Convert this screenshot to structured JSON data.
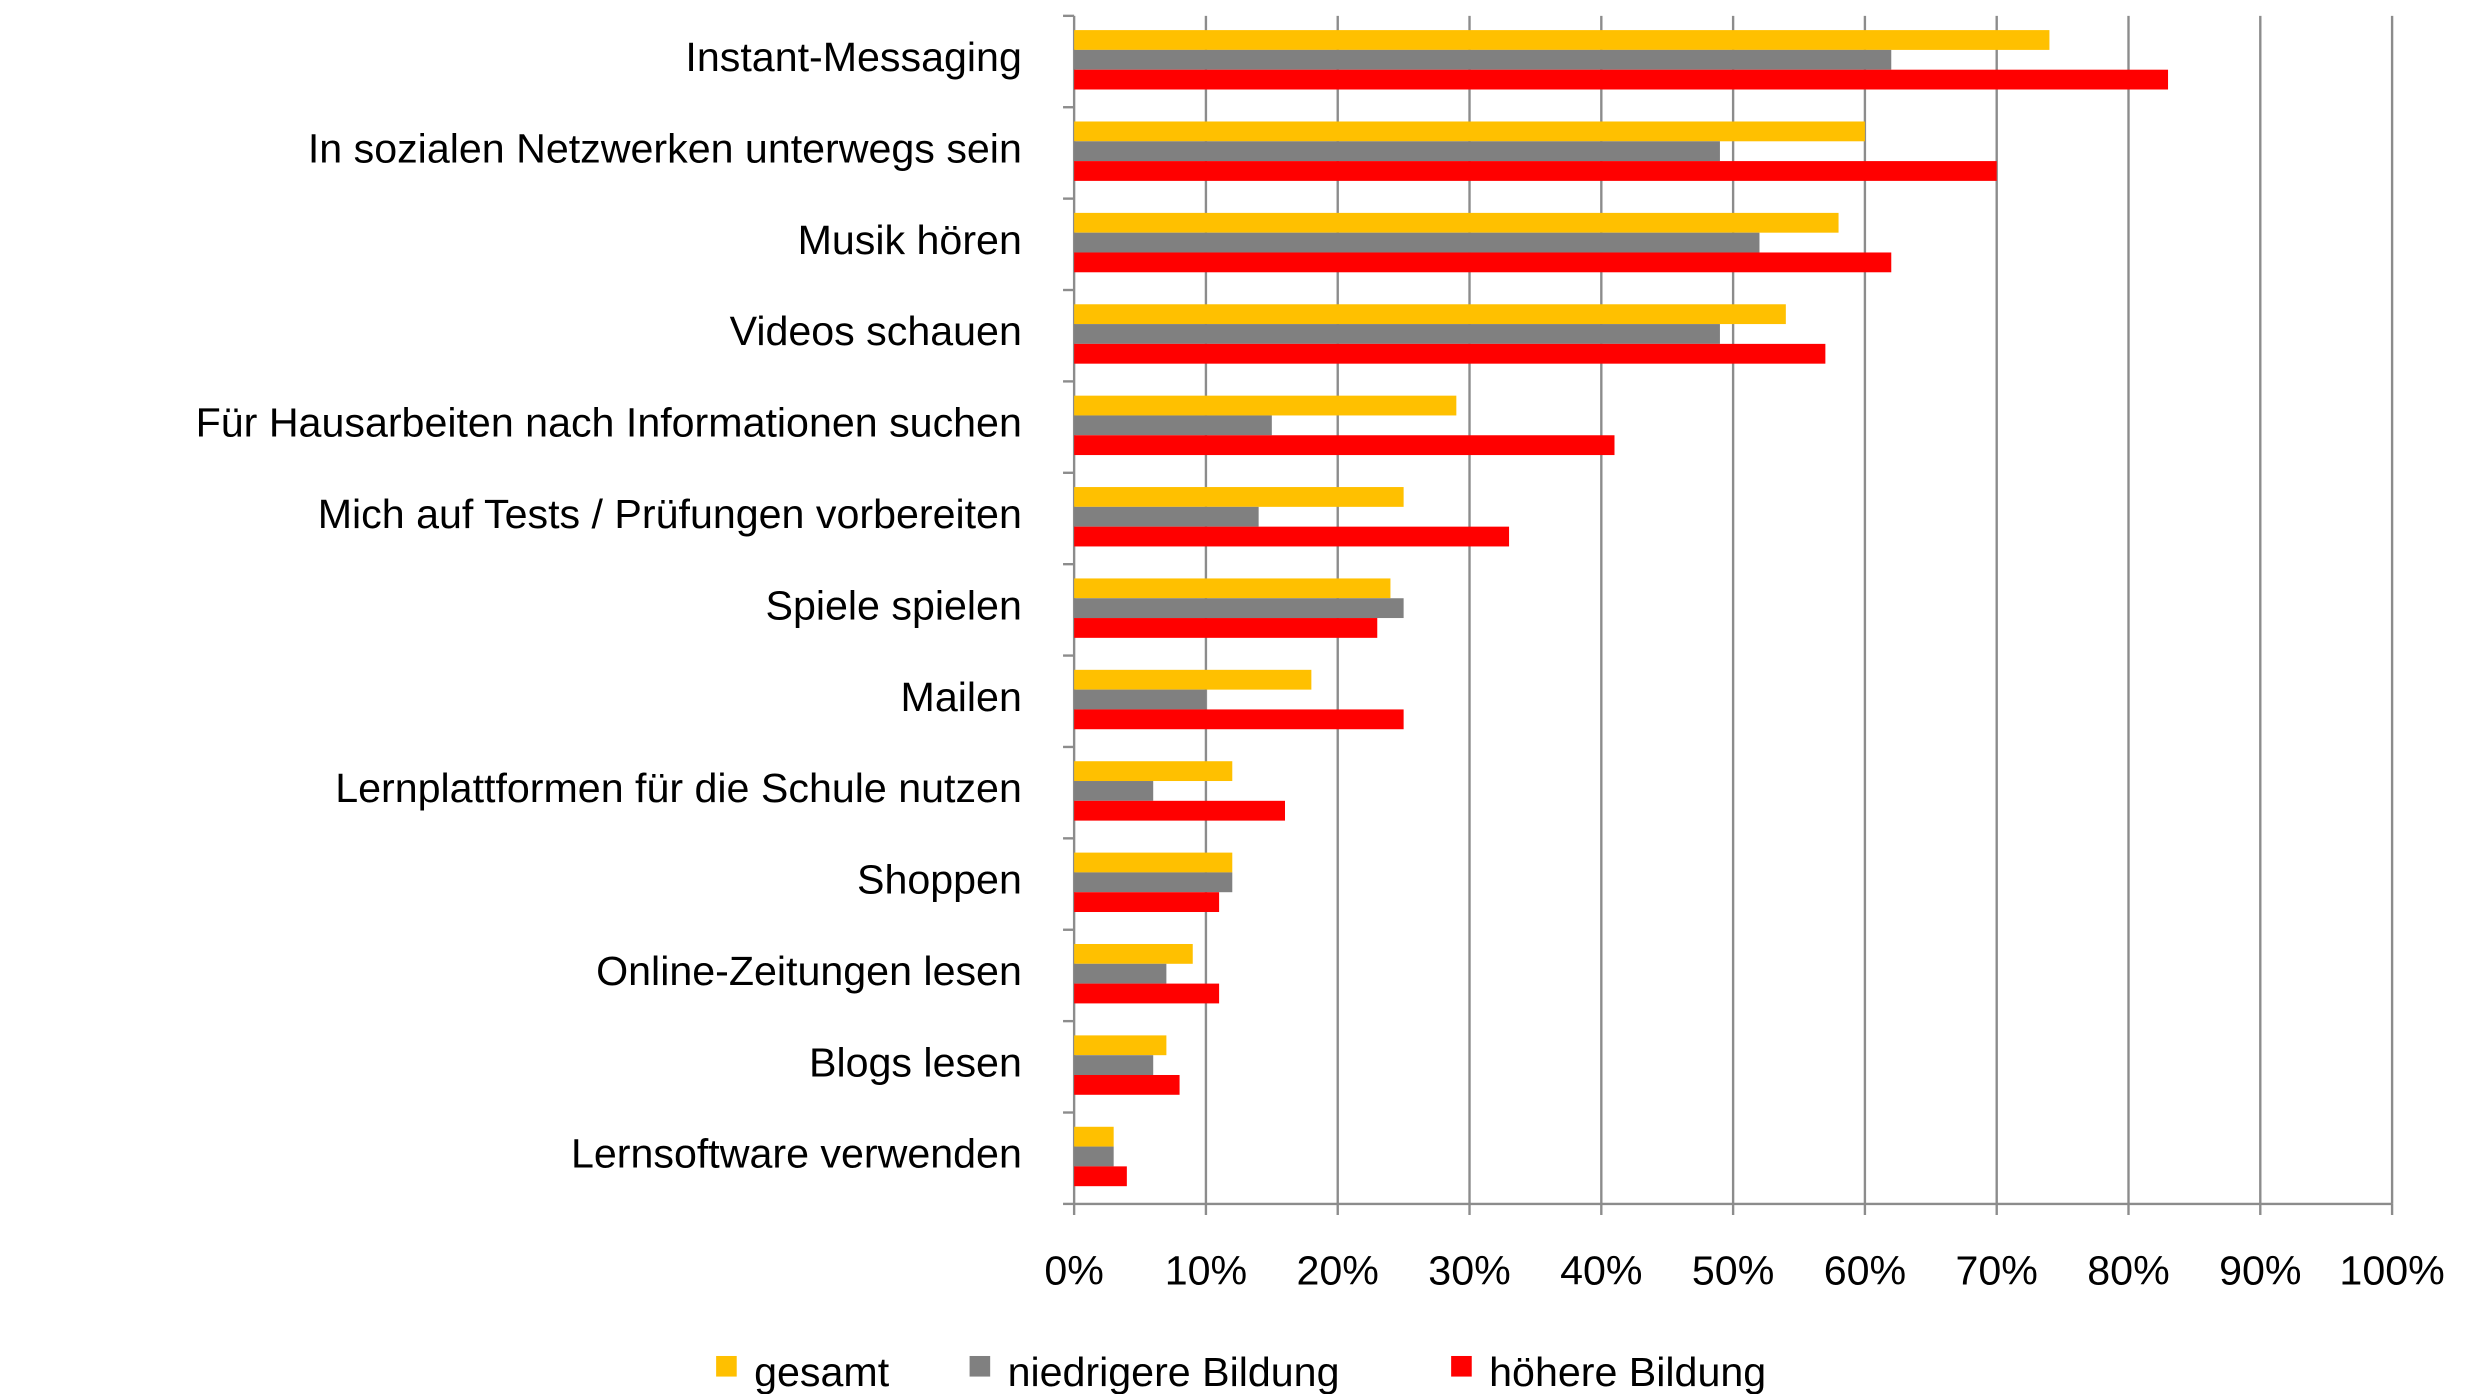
{
  "chart_data": {
    "type": "barh",
    "categories": [
      "Instant-Messaging",
      "In sozialen Netzwerken unterwegs sein",
      "Musik hören",
      "Videos schauen",
      "Für Hausarbeiten nach Informationen suchen",
      "Mich auf Tests / Prüfungen vorbereiten",
      "Spiele spielen",
      "Mailen",
      "Lernplattformen für die Schule nutzen",
      "Shoppen",
      "Online-Zeitungen lesen",
      "Blogs lesen",
      "Lernsoftware verwenden"
    ],
    "series": [
      {
        "name": "gesamt",
        "color": "#ffc000",
        "values": [
          74,
          60,
          58,
          54,
          29,
          25,
          24,
          18,
          12,
          12,
          9,
          7,
          3
        ]
      },
      {
        "name": "niedrigere Bildung",
        "color": "#808080",
        "values": [
          62,
          49,
          52,
          49,
          15,
          14,
          25,
          10,
          6,
          12,
          7,
          6,
          3
        ]
      },
      {
        "name": "höhere Bildung",
        "color": "#ff0000",
        "values": [
          83,
          70,
          62,
          57,
          41,
          33,
          23,
          25,
          16,
          11,
          11,
          8,
          4
        ]
      }
    ],
    "xlim": [
      0,
      100
    ],
    "xticks": [
      {
        "value": 0,
        "label": "0%"
      },
      {
        "value": 10,
        "label": "10%"
      },
      {
        "value": 20,
        "label": "20%"
      },
      {
        "value": 30,
        "label": "30%"
      },
      {
        "value": 40,
        "label": "40%"
      },
      {
        "value": 50,
        "label": "50%"
      },
      {
        "value": 60,
        "label": "60%"
      },
      {
        "value": 70,
        "label": "70%"
      },
      {
        "value": 80,
        "label": "80%"
      },
      {
        "value": 90,
        "label": "90%"
      },
      {
        "value": 100,
        "label": "100%"
      }
    ],
    "grid": true,
    "legend": "bottom"
  }
}
